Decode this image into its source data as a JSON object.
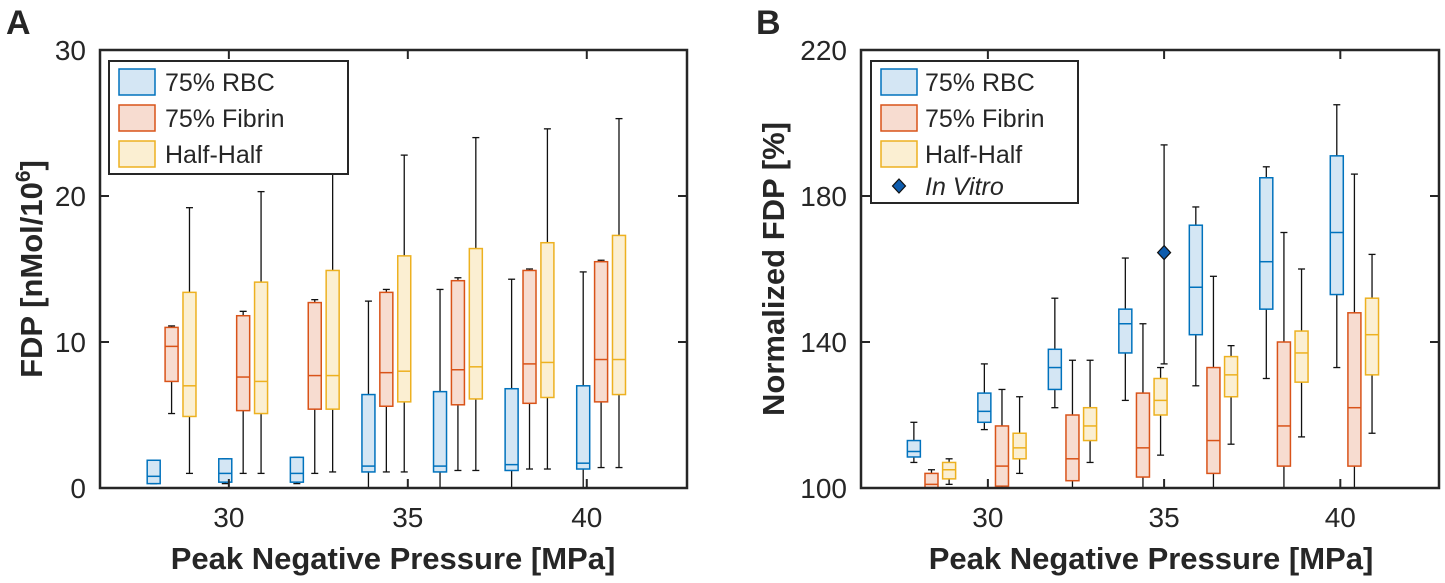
{
  "chart_data": [
    {
      "panel_label": "A",
      "type": "box",
      "title": "",
      "xlabel": "Peak Negative Pressure [MPa]",
      "ylabel": "FDP [nMol/10",
      "ylabel_exp": "6",
      "ylabel_close": "]",
      "xlim": [
        26.4,
        42.8
      ],
      "ylim": [
        0,
        30
      ],
      "xticks": [
        30,
        35,
        40
      ],
      "xtick_labels": [
        "30",
        "35",
        "40"
      ],
      "yticks": [
        0,
        10,
        20,
        30
      ],
      "ytick_labels": [
        "0",
        "10",
        "20",
        "30"
      ],
      "legend_position": "top-left",
      "series": [
        {
          "name": "75% RBC",
          "color": "#0072BD",
          "fill": "#d4e6f4",
          "boxes": [
            {
              "x": 27.9,
              "min": 0.3,
              "q1": 0.3,
              "median": 0.8,
              "q3": 1.9,
              "max": 1.9
            },
            {
              "x": 29.9,
              "min": 0.3,
              "q1": 0.4,
              "median": 1.0,
              "q3": 2.0,
              "max": 2.0
            },
            {
              "x": 31.9,
              "min": 0.3,
              "q1": 0.4,
              "median": 1.0,
              "q3": 2.1,
              "max": 2.1
            },
            {
              "x": 33.9,
              "min": 0.0,
              "q1": 1.1,
              "median": 1.5,
              "q3": 6.4,
              "max": 12.8
            },
            {
              "x": 35.9,
              "min": 0.0,
              "q1": 1.1,
              "median": 1.5,
              "q3": 6.6,
              "max": 13.6
            },
            {
              "x": 37.9,
              "min": 0.0,
              "q1": 1.2,
              "median": 1.6,
              "q3": 6.8,
              "max": 14.3
            },
            {
              "x": 39.9,
              "min": 0.0,
              "q1": 1.3,
              "median": 1.7,
              "q3": 7.0,
              "max": 14.8
            }
          ]
        },
        {
          "name": "75% Fibrin",
          "color": "#D95319",
          "fill": "#f7dcd0",
          "boxes": [
            {
              "x": 28.4,
              "min": 5.1,
              "q1": 7.3,
              "median": 9.7,
              "q3": 11.0,
              "max": 11.1
            },
            {
              "x": 30.4,
              "min": 1.0,
              "q1": 5.3,
              "median": 7.6,
              "q3": 11.8,
              "max": 12.1
            },
            {
              "x": 32.4,
              "min": 1.0,
              "q1": 5.4,
              "median": 7.7,
              "q3": 12.7,
              "max": 12.9
            },
            {
              "x": 34.4,
              "min": 1.1,
              "q1": 5.6,
              "median": 7.9,
              "q3": 13.4,
              "max": 13.6
            },
            {
              "x": 36.4,
              "min": 1.2,
              "q1": 5.7,
              "median": 8.1,
              "q3": 14.2,
              "max": 14.4
            },
            {
              "x": 38.4,
              "min": 1.3,
              "q1": 5.8,
              "median": 8.5,
              "q3": 14.9,
              "max": 15.0
            },
            {
              "x": 40.4,
              "min": 1.4,
              "q1": 5.9,
              "median": 8.8,
              "q3": 15.5,
              "max": 15.6
            }
          ]
        },
        {
          "name": "Half-Half",
          "color": "#EDB120",
          "fill": "#fbefd2",
          "boxes": [
            {
              "x": 28.9,
              "min": 1.0,
              "q1": 4.9,
              "median": 7.0,
              "q3": 13.4,
              "max": 19.2
            },
            {
              "x": 30.9,
              "min": 1.0,
              "q1": 5.1,
              "median": 7.3,
              "q3": 14.1,
              "max": 20.3
            },
            {
              "x": 32.9,
              "min": 1.1,
              "q1": 5.4,
              "median": 7.7,
              "q3": 14.9,
              "max": 21.6
            },
            {
              "x": 34.9,
              "min": 1.1,
              "q1": 5.9,
              "median": 8.0,
              "q3": 15.9,
              "max": 22.8
            },
            {
              "x": 36.9,
              "min": 1.2,
              "q1": 6.1,
              "median": 8.3,
              "q3": 16.4,
              "max": 24.0
            },
            {
              "x": 38.9,
              "min": 1.3,
              "q1": 6.2,
              "median": 8.6,
              "q3": 16.8,
              "max": 24.6
            },
            {
              "x": 40.9,
              "min": 1.4,
              "q1": 6.4,
              "median": 8.8,
              "q3": 17.3,
              "max": 25.3
            }
          ]
        }
      ]
    },
    {
      "panel_label": "B",
      "type": "box",
      "title": "",
      "xlabel": "Peak Negative Pressure [MPa]",
      "ylabel": "Normalized FDP [%]",
      "xlim": [
        26.4,
        42.8
      ],
      "ylim": [
        100,
        220
      ],
      "xticks": [
        30,
        35,
        40
      ],
      "xtick_labels": [
        "30",
        "35",
        "40"
      ],
      "yticks": [
        100,
        140,
        180,
        220
      ],
      "ytick_labels": [
        "100",
        "140",
        "180",
        "220"
      ],
      "legend_position": "top-left",
      "series": [
        {
          "name": "75% RBC",
          "color": "#0072BD",
          "fill": "#d4e6f4",
          "boxes": [
            {
              "x": 27.9,
              "min": 107,
              "q1": 108.5,
              "median": 110,
              "q3": 113,
              "max": 118
            },
            {
              "x": 29.9,
              "min": 116,
              "q1": 118,
              "median": 121,
              "q3": 126,
              "max": 134
            },
            {
              "x": 31.9,
              "min": 122,
              "q1": 127,
              "median": 133,
              "q3": 138,
              "max": 152
            },
            {
              "x": 33.9,
              "min": 124,
              "q1": 137,
              "median": 145,
              "q3": 149,
              "max": 163
            },
            {
              "x": 35.9,
              "min": 128,
              "q1": 142,
              "median": 155,
              "q3": 172,
              "max": 177
            },
            {
              "x": 37.9,
              "min": 130,
              "q1": 149,
              "median": 162,
              "q3": 185,
              "max": 188
            },
            {
              "x": 39.9,
              "min": 133,
              "q1": 153,
              "median": 170,
              "q3": 191,
              "max": 205
            }
          ]
        },
        {
          "name": "75% Fibrin",
          "color": "#D95319",
          "fill": "#f7dcd0",
          "boxes": [
            {
              "x": 28.4,
              "min": 100,
              "q1": 100,
              "median": 101,
              "q3": 104,
              "max": 105
            },
            {
              "x": 30.4,
              "min": 100,
              "q1": 100.5,
              "median": 106,
              "q3": 117,
              "max": 127
            },
            {
              "x": 32.4,
              "min": 100,
              "q1": 102,
              "median": 108,
              "q3": 120,
              "max": 135
            },
            {
              "x": 34.4,
              "min": 100,
              "q1": 103,
              "median": 111,
              "q3": 126,
              "max": 145
            },
            {
              "x": 36.4,
              "min": 100,
              "q1": 104,
              "median": 113,
              "q3": 133,
              "max": 158
            },
            {
              "x": 38.4,
              "min": 100,
              "q1": 106,
              "median": 117,
              "q3": 140,
              "max": 170
            },
            {
              "x": 40.4,
              "min": 100,
              "q1": 106,
              "median": 122,
              "q3": 148,
              "max": 186
            }
          ]
        },
        {
          "name": "Half-Half",
          "color": "#EDB120",
          "fill": "#fbefd2",
          "boxes": [
            {
              "x": 28.9,
              "min": 101,
              "q1": 102.5,
              "median": 105,
              "q3": 107,
              "max": 108
            },
            {
              "x": 30.9,
              "min": 104,
              "q1": 108,
              "median": 111,
              "q3": 115,
              "max": 125
            },
            {
              "x": 32.9,
              "min": 107,
              "q1": 113,
              "median": 117,
              "q3": 122,
              "max": 135
            },
            {
              "x": 34.9,
              "min": 109,
              "q1": 120,
              "median": 124,
              "q3": 130,
              "max": 133
            },
            {
              "x": 36.9,
              "min": 112,
              "q1": 125,
              "median": 131,
              "q3": 136,
              "max": 139
            },
            {
              "x": 38.9,
              "min": 114,
              "q1": 129,
              "median": 137,
              "q3": 143,
              "max": 160
            },
            {
              "x": 40.9,
              "min": 115,
              "q1": 131,
              "median": 142,
              "q3": 152,
              "max": 164
            }
          ]
        }
      ],
      "in_vitro": {
        "name": "In Vitro",
        "color": "#0E5CAD",
        "point": {
          "x": 35,
          "y": 164.5,
          "ymin": 134,
          "ymax": 194
        }
      }
    }
  ]
}
